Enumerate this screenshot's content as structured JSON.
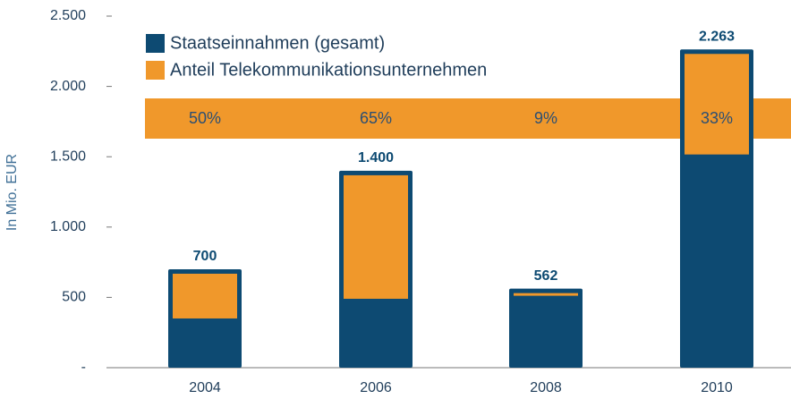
{
  "chart_data": {
    "type": "bar",
    "y_label": "In Mio. EUR",
    "categories": [
      "2004",
      "2006",
      "2008",
      "2010"
    ],
    "series": [
      {
        "name": "Staatseinnahmen (gesamt)",
        "color": "#0d4a72",
        "values": [
          700,
          1400,
          562,
          2263
        ],
        "value_labels": [
          "700",
          "1.400",
          "562",
          "2.263"
        ]
      },
      {
        "name": "Anteil Telekommunikationsunternehmen",
        "color": "#f0982b",
        "values": [
          50,
          65,
          9,
          33
        ],
        "value_labels": [
          "50%",
          "65%",
          "9%",
          "33%"
        ]
      }
    ],
    "ylim": [
      0,
      2500
    ],
    "yticks": [
      {
        "value": 0,
        "label": "-"
      },
      500,
      {
        "value": 1000,
        "label": "1.000"
      },
      {
        "value": 1500,
        "label": "1.500"
      },
      {
        "value": 2000,
        "label": "2.000"
      },
      {
        "value": 2500,
        "label": "2.500"
      }
    ]
  }
}
